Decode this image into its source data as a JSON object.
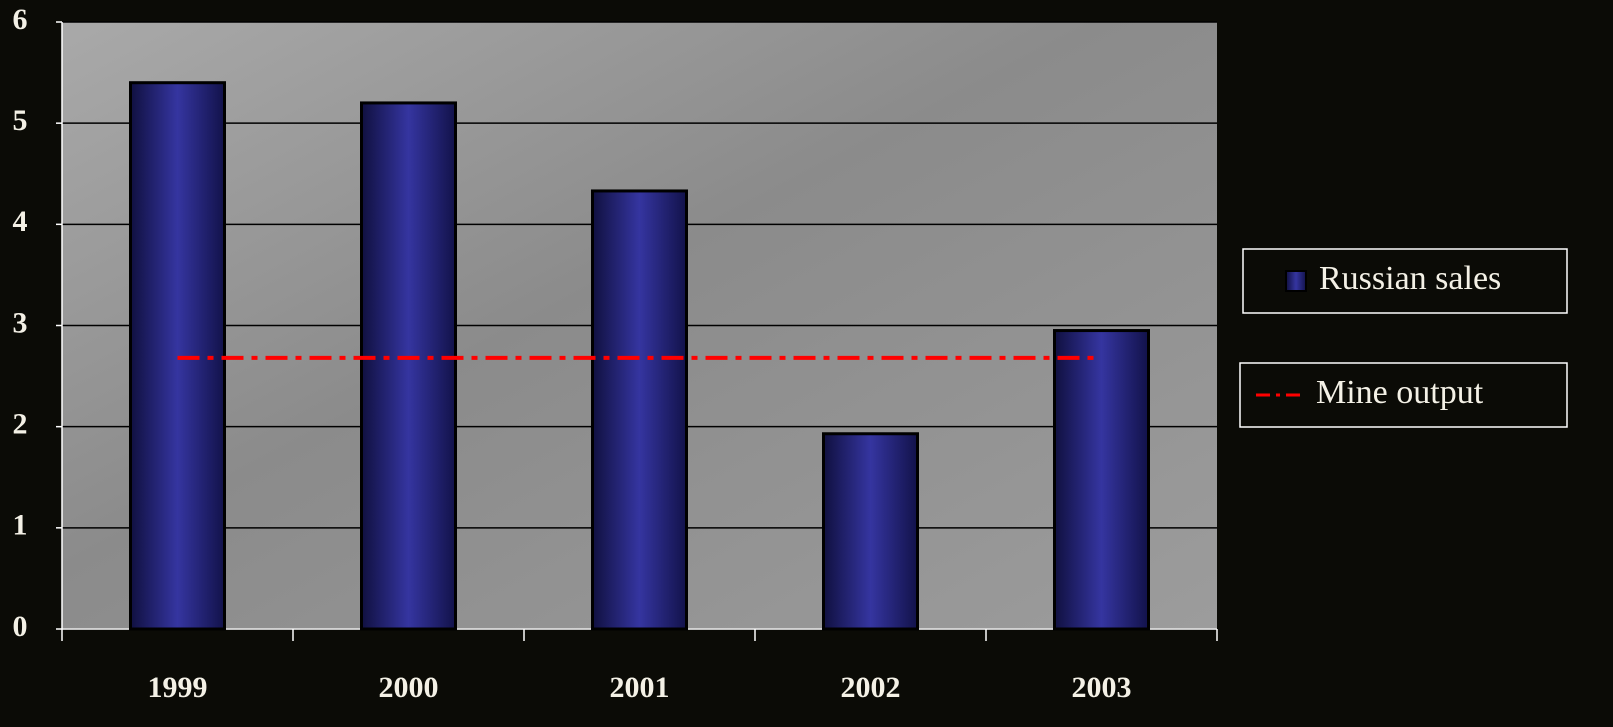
{
  "chart_data": {
    "type": "bar",
    "categories": [
      "1999",
      "2000",
      "2001",
      "2002",
      "2003"
    ],
    "series": [
      {
        "name": "Russian sales",
        "type": "bar",
        "color": "#2e2e8c",
        "values": [
          5.4,
          5.2,
          4.33,
          1.93,
          2.95
        ]
      },
      {
        "name": "Mine output",
        "type": "line",
        "color": "#ff0000",
        "values": [
          2.68,
          2.68,
          2.68,
          2.68,
          2.68
        ]
      }
    ],
    "ylim": [
      0,
      6
    ],
    "yticks": [
      0,
      1,
      2,
      3,
      4,
      5,
      6
    ],
    "grid": true
  }
}
